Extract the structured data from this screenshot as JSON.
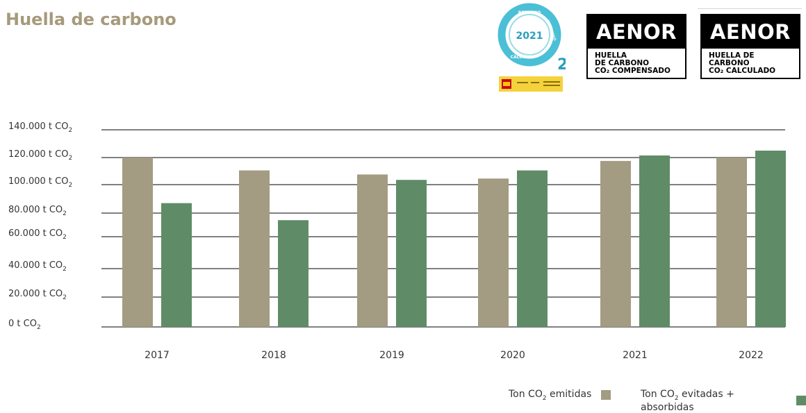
{
  "title": "Huella de carbono",
  "logos": {
    "co2_seal": {
      "year": "2021",
      "ring_top": "REDUZCO",
      "ring_right": "COMPENSO",
      "ring_bottom": "CÁLCULO"
    },
    "aenor_compensado": {
      "brand": "AENOR",
      "line1": "HUELLA",
      "line2": "DE CARBONO",
      "line3": "CO₂ COMPENSADO"
    },
    "aenor_calculado": {
      "brand": "AENOR",
      "line1": "HUELLA DE",
      "line2": "CARBONO",
      "line3": "CO₂ CALCULADO"
    }
  },
  "chart_data": {
    "type": "bar",
    "categories": [
      "2017",
      "2018",
      "2019",
      "2020",
      "2021",
      "2022"
    ],
    "series": [
      {
        "name": "Ton CO2 emitidas",
        "color": "#a39b82",
        "values": [
          120000,
          110500,
          107500,
          104500,
          117500,
          120000
        ]
      },
      {
        "name": "Ton CO2 evitadas + absorbidas",
        "color": "#5f8c67",
        "values": [
          87000,
          74000,
          103500,
          110500,
          121500,
          125000
        ]
      }
    ],
    "y_ticks": [
      {
        "value": 0,
        "label": "0 t CO",
        "sub": "2"
      },
      {
        "value": 20000,
        "label": "20.000 t CO",
        "sub": "2"
      },
      {
        "value": 40000,
        "label": "40.000 t CO",
        "sub": "2"
      },
      {
        "value": 60000,
        "label": "60.000 t CO",
        "sub": "2"
      },
      {
        "value": 80000,
        "label": "80.000 t CO",
        "sub": "2"
      },
      {
        "value": 100000,
        "label": "100.000 t CO",
        "sub": "2"
      },
      {
        "value": 120000,
        "label": "120.000 t CO",
        "sub": "2"
      },
      {
        "value": 140000,
        "label": "140.000 t CO",
        "sub": "2"
      }
    ],
    "ylim": [
      0,
      140000
    ],
    "grid": true,
    "legend_position": "bottom-right"
  },
  "legend": [
    {
      "prefix": "Ton CO",
      "sub": "2",
      "suffix": " emitidas",
      "color": "#a39b82"
    },
    {
      "prefix": "Ton CO",
      "sub": "2",
      "suffix": " evitadas + absorbidas",
      "color": "#5f8c67"
    }
  ],
  "colors": {
    "title": "#a69a7c",
    "gridline": "#000000",
    "seal_teal": "#4bbfd6",
    "spain_red": "#c60b1e",
    "spain_yellow": "#ffc400"
  }
}
